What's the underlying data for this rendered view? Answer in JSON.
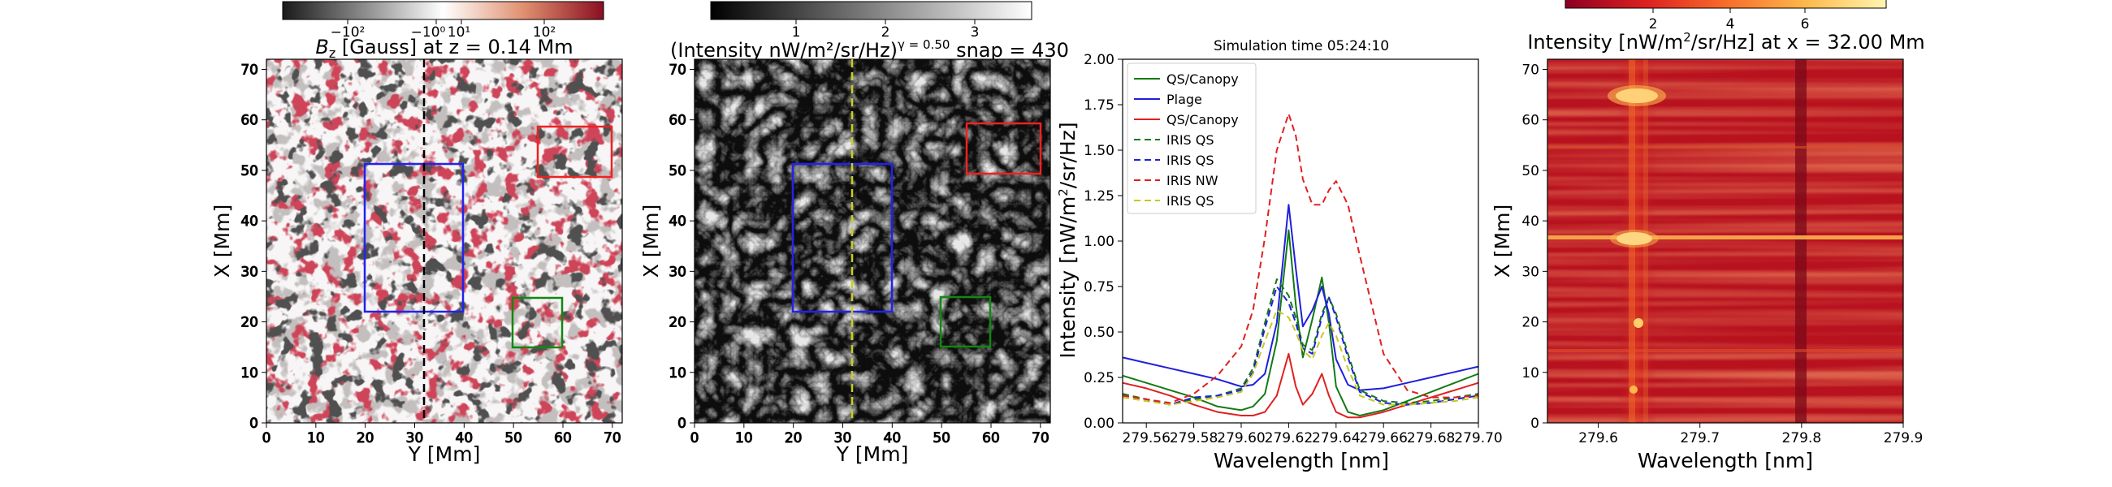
{
  "figure": {
    "colors": {
      "box_blue": "#2222ee",
      "box_red": "#ee2222",
      "box_green": "#118811",
      "dashed_black": "#000000",
      "dashed_yellow": "#cccc22"
    }
  },
  "chart_data": [
    {
      "type": "heatmap",
      "title": "$B_z$ [Gauss] at z = 0.14 Mm",
      "title_display": "Bz [Gauss] at z = 0.14 Mm",
      "colorbar": {
        "colormap": "RdGy_r",
        "scale": "symlog",
        "tick_labels": [
          "−10²",
          "−10⁰",
          "10¹",
          "10²"
        ]
      },
      "xlabel": "Y [Mm]",
      "ylabel": "X [Mm]",
      "xlim": [
        0,
        72
      ],
      "ylim": [
        0,
        72
      ],
      "xticks": [
        "0",
        "10",
        "20",
        "30",
        "40",
        "50",
        "60",
        "70"
      ],
      "yticks": [
        "0",
        "10",
        "20",
        "30",
        "40",
        "50",
        "60",
        "70"
      ],
      "rectangles": [
        {
          "color": "blue",
          "y_range": [
            20,
            40
          ],
          "x_range": [
            22,
            52
          ]
        },
        {
          "color": "red",
          "y_range": [
            55,
            70
          ],
          "x_range": [
            50,
            60
          ]
        },
        {
          "color": "green",
          "y_range": [
            50,
            60
          ],
          "x_range": [
            15,
            25
          ]
        }
      ],
      "vertical_line": {
        "y": 32,
        "style": "dashed",
        "color": "black"
      }
    },
    {
      "type": "heatmap",
      "title": "(Intensity nW/m²/sr/Hz)^γ = 0.50   snap = 430",
      "title_main": "(Intensity nW/m²/sr/Hz)",
      "title_gamma": "γ = 0.50",
      "title_snap": "snap = 430",
      "colorbar": {
        "colormap": "gray",
        "tick_labels": [
          "1",
          "2",
          "3"
        ]
      },
      "xlabel": "Y [Mm]",
      "ylabel": "X [Mm]",
      "xlim": [
        0,
        72
      ],
      "ylim": [
        0,
        72
      ],
      "xticks": [
        "0",
        "10",
        "20",
        "30",
        "40",
        "50",
        "60",
        "70"
      ],
      "yticks": [
        "0",
        "10",
        "20",
        "30",
        "40",
        "50",
        "60",
        "70"
      ],
      "rectangles": [
        {
          "color": "blue",
          "y_range": [
            20,
            40
          ],
          "x_range": [
            22,
            52
          ]
        },
        {
          "color": "red",
          "y_range": [
            55,
            70
          ],
          "x_range": [
            50,
            60
          ]
        },
        {
          "color": "green",
          "y_range": [
            50,
            60
          ],
          "x_range": [
            15,
            25
          ]
        }
      ],
      "vertical_line": {
        "y": 32,
        "style": "dashed",
        "color": "yellow"
      }
    },
    {
      "type": "line",
      "title": "Simulation time 05:24:10",
      "xlabel": "Wavelength [nm]",
      "ylabel": "Intensity [nW/m²/sr/Hz]",
      "xlim": [
        279.55,
        279.7
      ],
      "ylim": [
        0,
        2.0
      ],
      "xticks": [
        "279.56",
        "279.58",
        "279.60",
        "279.62",
        "279.64",
        "279.66",
        "279.68",
        "279.70"
      ],
      "yticks": [
        "0.00",
        "0.25",
        "0.50",
        "0.75",
        "1.00",
        "1.25",
        "1.50",
        "1.75",
        "2.00"
      ],
      "legend_position": "top-left",
      "x": [
        279.55,
        279.56,
        279.57,
        279.58,
        279.59,
        279.6,
        279.605,
        279.61,
        279.615,
        279.62,
        279.623,
        279.626,
        279.63,
        279.634,
        279.637,
        279.64,
        279.645,
        279.65,
        279.66,
        279.67,
        279.68,
        279.69,
        279.7
      ],
      "series": [
        {
          "name": "QS/Canopy",
          "color": "#137a13",
          "dash": "solid",
          "values": [
            0.26,
            0.22,
            0.18,
            0.14,
            0.09,
            0.07,
            0.09,
            0.16,
            0.45,
            1.06,
            0.65,
            0.36,
            0.57,
            0.8,
            0.55,
            0.2,
            0.06,
            0.04,
            0.07,
            0.12,
            0.17,
            0.22,
            0.27
          ]
        },
        {
          "name": "Plage",
          "color": "#1f1fdd",
          "dash": "solid",
          "values": [
            0.36,
            0.33,
            0.3,
            0.27,
            0.24,
            0.2,
            0.21,
            0.27,
            0.55,
            1.2,
            0.85,
            0.53,
            0.62,
            0.75,
            0.6,
            0.35,
            0.21,
            0.18,
            0.19,
            0.22,
            0.25,
            0.28,
            0.31
          ]
        },
        {
          "name": "QS/Canopy",
          "color": "#e02020",
          "dash": "solid",
          "values": [
            0.22,
            0.19,
            0.15,
            0.1,
            0.06,
            0.04,
            0.04,
            0.06,
            0.15,
            0.38,
            0.2,
            0.1,
            0.16,
            0.27,
            0.15,
            0.06,
            0.03,
            0.03,
            0.06,
            0.1,
            0.14,
            0.18,
            0.22
          ]
        },
        {
          "name": "IRIS QS",
          "color": "#137a13",
          "dash": "dashed",
          "values": [
            0.16,
            0.13,
            0.1,
            0.13,
            0.15,
            0.19,
            0.3,
            0.55,
            0.79,
            0.7,
            0.58,
            0.43,
            0.4,
            0.6,
            0.69,
            0.6,
            0.38,
            0.18,
            0.12,
            0.11,
            0.12,
            0.14,
            0.16
          ]
        },
        {
          "name": "IRIS QS",
          "color": "#1f1fdd",
          "dash": "dashed",
          "values": [
            0.15,
            0.13,
            0.1,
            0.14,
            0.15,
            0.18,
            0.28,
            0.52,
            0.75,
            0.66,
            0.55,
            0.41,
            0.38,
            0.58,
            0.69,
            0.58,
            0.36,
            0.17,
            0.11,
            0.1,
            0.11,
            0.13,
            0.15
          ]
        },
        {
          "name": "IRIS NW",
          "color": "#e02020",
          "dash": "dashed",
          "values": [
            0.15,
            0.13,
            0.11,
            0.16,
            0.26,
            0.42,
            0.62,
            1.02,
            1.5,
            1.7,
            1.58,
            1.34,
            1.2,
            1.2,
            1.28,
            1.33,
            1.2,
            0.92,
            0.38,
            0.18,
            0.14,
            0.14,
            0.15
          ]
        },
        {
          "name": "IRIS QS",
          "color": "#c8c820",
          "dash": "dashed",
          "values": [
            0.14,
            0.12,
            0.1,
            0.12,
            0.14,
            0.17,
            0.27,
            0.45,
            0.62,
            0.58,
            0.5,
            0.4,
            0.35,
            0.48,
            0.55,
            0.48,
            0.3,
            0.15,
            0.1,
            0.1,
            0.11,
            0.12,
            0.14
          ]
        }
      ]
    },
    {
      "type": "heatmap",
      "title": "Intensity [nW/m²/sr/Hz] at x = 32.00 Mm",
      "colorbar": {
        "colormap": "YlOrRd_r",
        "tick_labels": [
          "2",
          "4",
          "6"
        ]
      },
      "xlabel": "Wavelength [nm]",
      "ylabel": "X [Mm]",
      "xlim": [
        279.55,
        279.9
      ],
      "ylim": [
        0,
        72
      ],
      "xticks": [
        "279.6",
        "279.7",
        "279.8",
        "279.9"
      ],
      "yticks": [
        "0",
        "10",
        "20",
        "30",
        "40",
        "50",
        "60",
        "70"
      ],
      "bright_features": [
        {
          "wavelength": 279.635,
          "x": 65
        },
        {
          "wavelength": 279.635,
          "x": 37
        },
        {
          "wavelength": 279.635,
          "x": 17
        }
      ]
    }
  ]
}
